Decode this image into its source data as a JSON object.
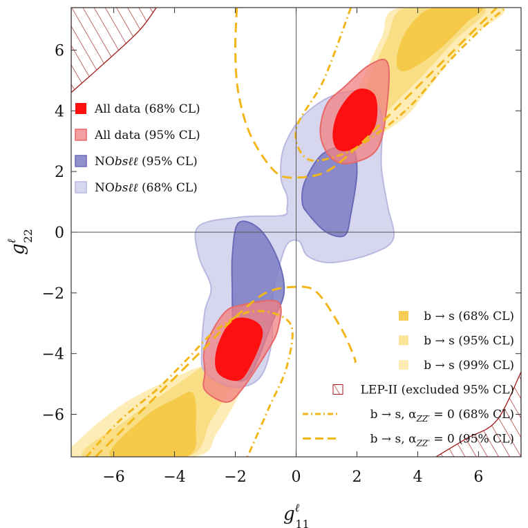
{
  "chart_data": {
    "type": "contour",
    "xlabel": "g",
    "xlabel_sup": "ℓ",
    "xlabel_sub": "11",
    "ylabel": "g",
    "ylabel_sup": "ℓ",
    "ylabel_sub": "22",
    "xlim": [
      -7.4,
      7.4
    ],
    "ylim": [
      -7.4,
      7.4
    ],
    "xticks": [
      -6,
      -4,
      -2,
      0,
      2,
      4,
      6
    ],
    "yticks": [
      -6,
      -4,
      -2,
      0,
      2,
      4,
      6
    ],
    "xtick_labels": [
      "−6",
      "−4",
      "−2",
      "0",
      "2",
      "4",
      "6"
    ],
    "ytick_labels": [
      "−6",
      "−4",
      "−2",
      "0",
      "2",
      "4",
      "6"
    ],
    "colors": {
      "all_68": "#ff1010",
      "all_95": "#f08080",
      "nobs_95": "#7c7cc4",
      "nobs_68": "#cfcfec",
      "bs_68": "#f5c842",
      "bs_95": "#f8d976",
      "bs_99": "#fde9a8",
      "lep": "#a01818",
      "dash": "#f2b619"
    },
    "legend_upper": [
      {
        "key": "all_68",
        "prefix": "All data (68% CL)",
        "italic": "",
        "suffix": ""
      },
      {
        "key": "all_95",
        "prefix": "All data (95% CL)",
        "italic": "",
        "suffix": ""
      },
      {
        "key": "nobs_95",
        "prefix": "NO",
        "italic": "bsℓℓ",
        "suffix": " (95% CL)"
      },
      {
        "key": "nobs_68",
        "prefix": "NO",
        "italic": "bsℓℓ",
        "suffix": " (68% CL)"
      }
    ],
    "legend_lower": [
      {
        "key": "bs_68",
        "style": "box",
        "label": "b → s (68% CL)"
      },
      {
        "key": "bs_95",
        "style": "box",
        "label": "b → s (95% CL)"
      },
      {
        "key": "bs_99",
        "style": "box",
        "label": "b → s (99% CL)"
      },
      {
        "key": "lep",
        "style": "hatch",
        "label": "LEP-II (excluded 95% CL)"
      },
      {
        "key": "dash",
        "style": "dashdot",
        "label": "b → s, α",
        "sub": "ZZ′",
        "tail": " = 0 (68% CL)"
      },
      {
        "key": "dash",
        "style": "dash",
        "label": "b → s, α",
        "sub": "ZZ′",
        "tail": " = 0 (95% CL)"
      }
    ],
    "regions": {
      "bs_99_upper": [
        [
          1.4,
          3.0
        ],
        [
          2.0,
          4.6
        ],
        [
          2.8,
          6.4
        ],
        [
          3.4,
          7.4
        ],
        [
          6.8,
          7.4
        ],
        [
          5.6,
          6.3
        ],
        [
          4.4,
          4.8
        ],
        [
          3.6,
          3.8
        ],
        [
          2.4,
          3.0
        ],
        [
          1.8,
          2.6
        ]
      ],
      "bs_95_upper": [
        [
          1.9,
          3.6
        ],
        [
          2.4,
          5.0
        ],
        [
          3.0,
          6.4
        ],
        [
          3.6,
          7.4
        ],
        [
          6.2,
          7.4
        ],
        [
          5.2,
          6.3
        ],
        [
          4.2,
          5.2
        ],
        [
          3.2,
          4.2
        ],
        [
          2.4,
          3.3
        ]
      ],
      "bs_68_upper": [
        [
          3.3,
          5.6
        ],
        [
          3.5,
          6.4
        ],
        [
          4.0,
          7.1
        ],
        [
          4.6,
          7.4
        ],
        [
          6.1,
          7.4
        ],
        [
          5.6,
          6.9
        ],
        [
          4.8,
          6.1
        ],
        [
          4.0,
          5.5
        ],
        [
          3.5,
          5.3
        ]
      ],
      "bs_99_lower": [
        [
          -7.4,
          -7.4
        ],
        [
          -7.2,
          -6.9
        ],
        [
          -5.6,
          -5.6
        ],
        [
          -3.6,
          -4.6
        ],
        [
          -2.6,
          -4.2
        ],
        [
          -2.2,
          -3.2
        ],
        [
          -1.6,
          -3.3
        ],
        [
          -1.4,
          -4.0
        ],
        [
          -1.7,
          -5.0
        ],
        [
          -2.6,
          -6.6
        ],
        [
          -3.4,
          -7.4
        ]
      ],
      "bs_95_lower": [
        [
          -7.0,
          -7.4
        ],
        [
          -5.6,
          -6.2
        ],
        [
          -4.2,
          -5.2
        ],
        [
          -3.2,
          -4.5
        ],
        [
          -2.2,
          -3.6
        ],
        [
          -1.8,
          -3.6
        ],
        [
          -1.9,
          -4.6
        ],
        [
          -2.8,
          -6.2
        ],
        [
          -3.6,
          -7.4
        ]
      ],
      "bs_68_lower": [
        [
          -6.1,
          -7.4
        ],
        [
          -5.0,
          -6.1
        ],
        [
          -4.0,
          -5.5
        ],
        [
          -3.4,
          -5.3
        ],
        [
          -3.3,
          -6.3
        ],
        [
          -3.6,
          -7.4
        ]
      ],
      "nobs_68": [
        [
          -0.45,
          0.55
        ],
        [
          -1.8,
          0.5
        ],
        [
          -3.2,
          0.2
        ],
        [
          -3.2,
          -0.8
        ],
        [
          -2.8,
          -1.8
        ],
        [
          -3.0,
          -2.6
        ],
        [
          -3.1,
          -3.8
        ],
        [
          -3.0,
          -4.6
        ],
        [
          -2.1,
          -5.1
        ],
        [
          -1.2,
          -4.8
        ],
        [
          -0.8,
          -3.6
        ],
        [
          -0.8,
          -2.3
        ],
        [
          -0.6,
          -1.3
        ],
        [
          -0.3,
          -0.4
        ],
        [
          0.1,
          -0.3
        ],
        [
          0.4,
          -0.8
        ],
        [
          1.2,
          -1.0
        ],
        [
          2.5,
          -0.7
        ],
        [
          3.2,
          -0.2
        ],
        [
          3.0,
          0.9
        ],
        [
          2.8,
          2.2
        ],
        [
          2.8,
          3.9
        ],
        [
          2.2,
          4.6
        ],
        [
          1.2,
          4.5
        ],
        [
          0.2,
          3.8
        ],
        [
          -0.4,
          2.8
        ],
        [
          -0.5,
          1.8
        ],
        [
          -0.3,
          1.2
        ],
        [
          -0.3,
          0.8
        ]
      ],
      "nobs_95": [
        [
          0.3,
          1.7
        ],
        [
          0.9,
          2.6
        ],
        [
          1.8,
          2.8
        ],
        [
          2.0,
          2.0
        ],
        [
          1.8,
          0.6
        ],
        [
          1.6,
          -0.1
        ],
        [
          1.0,
          0.0
        ],
        [
          0.4,
          0.6
        ],
        [
          0.2,
          1.0
        ]
      ],
      "nobs_95_b": [
        [
          -1.9,
          0.3
        ],
        [
          -1.2,
          0.1
        ],
        [
          -0.6,
          -0.9
        ],
        [
          -0.4,
          -2.0
        ],
        [
          -0.8,
          -3.0
        ],
        [
          -1.4,
          -4.5
        ],
        [
          -1.8,
          -4.9
        ],
        [
          -2.2,
          -4.6
        ],
        [
          -2.1,
          -3.6
        ],
        [
          -2.1,
          -2.0
        ],
        [
          -2.1,
          -0.8
        ]
      ],
      "all_95_upper": [
        [
          0.8,
          3.2
        ],
        [
          1.0,
          4.2
        ],
        [
          1.6,
          4.8
        ],
        [
          2.4,
          5.5
        ],
        [
          3.0,
          5.6
        ],
        [
          3.0,
          4.3
        ],
        [
          2.7,
          2.8
        ],
        [
          1.9,
          2.3
        ],
        [
          1.2,
          2.4
        ]
      ],
      "all_68_upper": [
        [
          1.2,
          3.2
        ],
        [
          1.4,
          4.0
        ],
        [
          2.0,
          4.7
        ],
        [
          2.6,
          4.5
        ],
        [
          2.6,
          3.5
        ],
        [
          2.0,
          2.8
        ],
        [
          1.4,
          2.7
        ]
      ],
      "all_95_lower": [
        [
          -3.0,
          -3.8
        ],
        [
          -2.4,
          -2.7
        ],
        [
          -1.8,
          -2.4
        ],
        [
          -0.6,
          -2.3
        ],
        [
          -0.6,
          -3.2
        ],
        [
          -1.0,
          -4.0
        ],
        [
          -1.8,
          -5.2
        ],
        [
          -2.3,
          -5.6
        ],
        [
          -3.0,
          -5.2
        ],
        [
          -3.0,
          -4.6
        ]
      ],
      "all_68_lower": [
        [
          -2.6,
          -3.8
        ],
        [
          -2.1,
          -2.9
        ],
        [
          -1.4,
          -2.9
        ],
        [
          -1.1,
          -3.4
        ],
        [
          -1.6,
          -4.6
        ],
        [
          -2.0,
          -4.9
        ],
        [
          -2.6,
          -4.6
        ]
      ]
    },
    "dash_curves": {
      "dash95_upper": [
        [
          -1.95,
          7.4
        ],
        [
          -2.0,
          6.0
        ],
        [
          -1.9,
          4.6
        ],
        [
          -1.5,
          3.2
        ],
        [
          -0.7,
          2.0
        ],
        [
          0.0,
          1.8
        ],
        [
          1.0,
          2.0
        ],
        [
          2.0,
          2.8
        ],
        [
          3.0,
          3.8
        ],
        [
          4.4,
          5.2
        ],
        [
          5.6,
          6.4
        ],
        [
          6.6,
          7.4
        ]
      ],
      "dash95_lower": [
        [
          -6.6,
          -7.4
        ],
        [
          -5.6,
          -6.4
        ],
        [
          -4.4,
          -5.2
        ],
        [
          -3.0,
          -3.8
        ],
        [
          -2.0,
          -2.8
        ],
        [
          -1.0,
          -2.0
        ],
        [
          0.0,
          -1.8
        ],
        [
          0.7,
          -2.0
        ],
        [
          1.5,
          -3.2
        ],
        [
          1.9,
          -4.1
        ],
        [
          1.95,
          -4.3
        ]
      ],
      "dashdot68_upper": [
        [
          1.8,
          7.4
        ],
        [
          0.9,
          5.0
        ],
        [
          0.0,
          3.4
        ],
        [
          0.4,
          2.4
        ],
        [
          1.6,
          2.6
        ],
        [
          2.6,
          3.2
        ],
        [
          3.8,
          4.2
        ],
        [
          5.0,
          5.6
        ],
        [
          6.2,
          6.8
        ],
        [
          6.9,
          7.4
        ]
      ],
      "dashdot68_lower": [
        [
          -6.9,
          -7.4
        ],
        [
          -5.8,
          -6.2
        ],
        [
          -4.6,
          -5.2
        ],
        [
          -3.6,
          -4.2
        ],
        [
          -2.6,
          -3.2
        ],
        [
          -1.4,
          -2.6
        ],
        [
          -0.2,
          -3.0
        ],
        [
          -0.3,
          -4.4
        ],
        [
          -0.9,
          -5.8
        ],
        [
          -1.6,
          -7.4
        ]
      ]
    },
    "lep_excluded": [
      {
        "corner": "top-left",
        "boundary": [
          [
            -7.4,
            4.6
          ],
          [
            -6.5,
            5.4
          ],
          [
            -5.2,
            6.6
          ],
          [
            -4.6,
            7.4
          ]
        ]
      },
      {
        "corner": "bottom-right",
        "boundary": [
          [
            4.6,
            -7.4
          ],
          [
            5.6,
            -6.8
          ],
          [
            6.6,
            -6.2
          ],
          [
            7.4,
            -4.6
          ]
        ]
      }
    ]
  }
}
